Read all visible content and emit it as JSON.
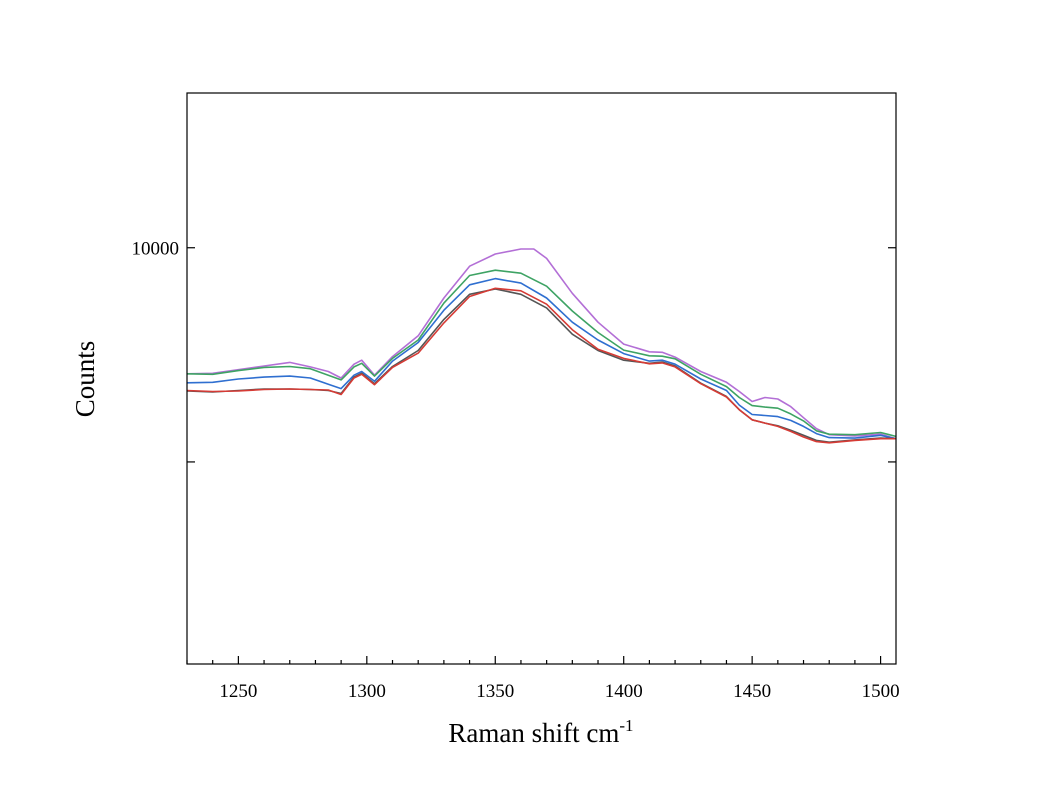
{
  "chart_data": {
    "type": "line",
    "title": "",
    "xlabel": "Raman shift cm",
    "xlabel_superscript": "-1",
    "ylabel": "Counts",
    "xlim": [
      1230,
      1506
    ],
    "y_scale": "log",
    "ylim": [
      2600,
      16500
    ],
    "x_ticks": [
      1250,
      1300,
      1350,
      1400,
      1450,
      1500
    ],
    "x_tick_labels": [
      "1250",
      "1300",
      "1350",
      "1400",
      "1450",
      "1500"
    ],
    "y_ticks": [
      5000,
      10000
    ],
    "y_tick_labels": {
      "10000": "10000"
    },
    "grid": false,
    "legend": null,
    "series": [
      {
        "color": "#b36fd6",
        "x": [
          1230,
          1240,
          1250,
          1260,
          1270,
          1278,
          1285,
          1290,
          1295,
          1298,
          1303,
          1310,
          1320,
          1330,
          1340,
          1350,
          1360,
          1365,
          1370,
          1380,
          1390,
          1400,
          1410,
          1415,
          1420,
          1430,
          1440,
          1445,
          1450,
          1455,
          1460,
          1465,
          1470,
          1475,
          1480,
          1490,
          1500,
          1506
        ],
        "y": [
          6650,
          6660,
          6740,
          6820,
          6900,
          6800,
          6700,
          6560,
          6860,
          6950,
          6620,
          7030,
          7520,
          8500,
          9420,
          9800,
          9960,
          9960,
          9660,
          8630,
          7860,
          7320,
          7140,
          7130,
          7020,
          6700,
          6470,
          6280,
          6080,
          6160,
          6130,
          5980,
          5770,
          5570,
          5460,
          5440,
          5470,
          5390
        ]
      },
      {
        "color": "#3ea364",
        "x": [
          1230,
          1240,
          1250,
          1260,
          1270,
          1278,
          1285,
          1290,
          1295,
          1298,
          1303,
          1310,
          1320,
          1330,
          1340,
          1350,
          1360,
          1370,
          1380,
          1390,
          1400,
          1410,
          1415,
          1420,
          1430,
          1440,
          1445,
          1450,
          1455,
          1460,
          1465,
          1470,
          1475,
          1480,
          1490,
          1500,
          1506
        ],
        "y": [
          6650,
          6640,
          6720,
          6790,
          6810,
          6760,
          6620,
          6520,
          6800,
          6880,
          6600,
          6990,
          7420,
          8360,
          9140,
          9300,
          9210,
          8830,
          8150,
          7600,
          7180,
          7050,
          7040,
          6980,
          6640,
          6380,
          6160,
          6000,
          5970,
          5950,
          5840,
          5710,
          5530,
          5470,
          5460,
          5500,
          5430
        ]
      },
      {
        "color": "#2f6fd0",
        "x": [
          1230,
          1240,
          1250,
          1260,
          1270,
          1278,
          1285,
          1290,
          1295,
          1298,
          1303,
          1310,
          1320,
          1330,
          1340,
          1350,
          1360,
          1370,
          1380,
          1390,
          1400,
          1410,
          1415,
          1420,
          1430,
          1440,
          1445,
          1450,
          1455,
          1460,
          1465,
          1470,
          1475,
          1480,
          1490,
          1500,
          1506
        ],
        "y": [
          6460,
          6470,
          6540,
          6580,
          6600,
          6560,
          6430,
          6340,
          6620,
          6700,
          6490,
          6930,
          7360,
          8170,
          8870,
          9050,
          8920,
          8500,
          7860,
          7420,
          7100,
          6930,
          6950,
          6860,
          6540,
          6300,
          6010,
          5830,
          5810,
          5790,
          5720,
          5610,
          5480,
          5410,
          5400,
          5450,
          5390
        ]
      },
      {
        "color": "#555555",
        "x": [
          1230,
          1240,
          1250,
          1260,
          1270,
          1278,
          1285,
          1290,
          1295,
          1298,
          1303,
          1310,
          1320,
          1330,
          1340,
          1350,
          1360,
          1370,
          1380,
          1390,
          1400,
          1410,
          1415,
          1420,
          1430,
          1440,
          1445,
          1450,
          1455,
          1460,
          1465,
          1470,
          1475,
          1480,
          1490,
          1500,
          1506
        ],
        "y": [
          6290,
          6270,
          6300,
          6330,
          6330,
          6320,
          6300,
          6240,
          6580,
          6660,
          6440,
          6810,
          7170,
          7930,
          8600,
          8750,
          8600,
          8230,
          7560,
          7170,
          6950,
          6880,
          6910,
          6820,
          6450,
          6180,
          5920,
          5730,
          5670,
          5620,
          5540,
          5450,
          5360,
          5330,
          5370,
          5400,
          5390
        ]
      },
      {
        "color": "#d63b35",
        "x": [
          1230,
          1240,
          1250,
          1260,
          1270,
          1278,
          1285,
          1290,
          1295,
          1298,
          1303,
          1310,
          1320,
          1330,
          1340,
          1350,
          1360,
          1370,
          1380,
          1390,
          1400,
          1410,
          1415,
          1420,
          1430,
          1440,
          1445,
          1450,
          1455,
          1460,
          1465,
          1470,
          1475,
          1480,
          1490,
          1500,
          1506
        ],
        "y": [
          6300,
          6280,
          6290,
          6320,
          6330,
          6320,
          6310,
          6220,
          6560,
          6640,
          6420,
          6790,
          7110,
          7840,
          8540,
          8770,
          8700,
          8330,
          7670,
          7200,
          6990,
          6870,
          6890,
          6800,
          6440,
          6170,
          5920,
          5730,
          5670,
          5610,
          5520,
          5420,
          5340,
          5320,
          5360,
          5390,
          5390
        ]
      }
    ]
  }
}
